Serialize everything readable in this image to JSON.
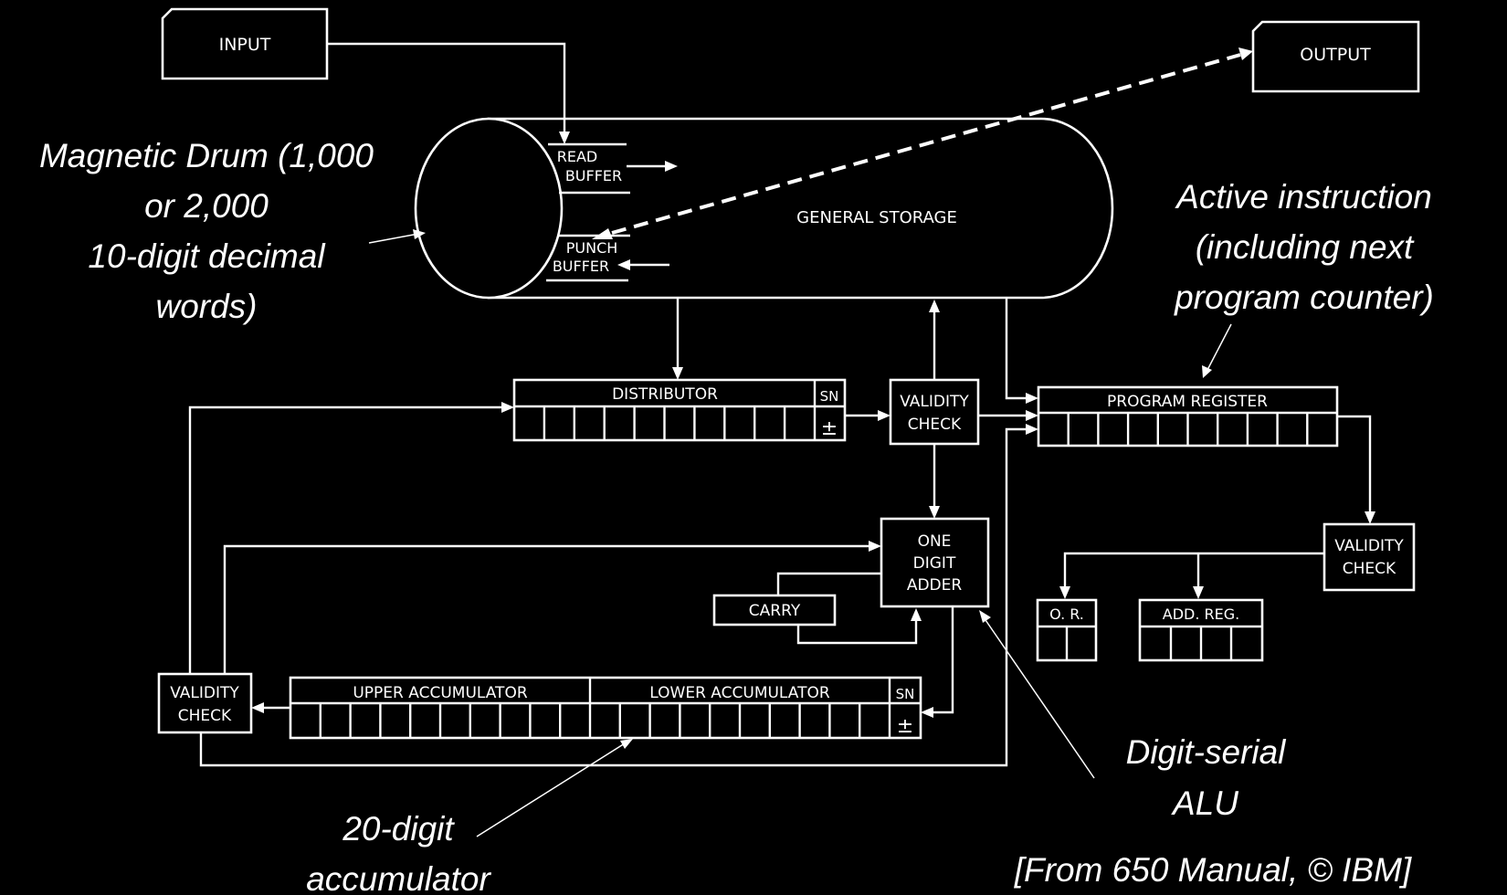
{
  "diagram": {
    "input_label": "INPUT",
    "output_label": "OUTPUT",
    "read_buffer": [
      "READ",
      "BUFFER"
    ],
    "punch_buffer": [
      "PUNCH",
      "BUFFER"
    ],
    "general_storage": "GENERAL STORAGE",
    "distributor": "DISTRIBUTOR",
    "sign_label": "SN",
    "sign_symbol": "±",
    "validity_check": [
      "VALIDITY",
      "CHECK"
    ],
    "program_register": "PROGRAM REGISTER",
    "one_digit_adder": [
      "ONE",
      "DIGIT",
      "ADDER"
    ],
    "carry": "CARRY",
    "op_register": "O. R.",
    "address_register": "ADD. REG.",
    "upper_accumulator": "UPPER ACCUMULATOR",
    "lower_accumulator": "LOWER ACCUMULATOR"
  },
  "annotations": {
    "drum": [
      "Magnetic Drum (1,000",
      "or 2,000",
      "10-digit decimal",
      "words)"
    ],
    "active_instruction": [
      "Active instruction",
      "(including next",
      "program counter)"
    ],
    "alu": [
      "Digit-serial",
      "ALU"
    ],
    "accumulator": [
      "20-digit",
      "accumulator"
    ],
    "credit": "[From 650 Manual, © IBM]"
  }
}
